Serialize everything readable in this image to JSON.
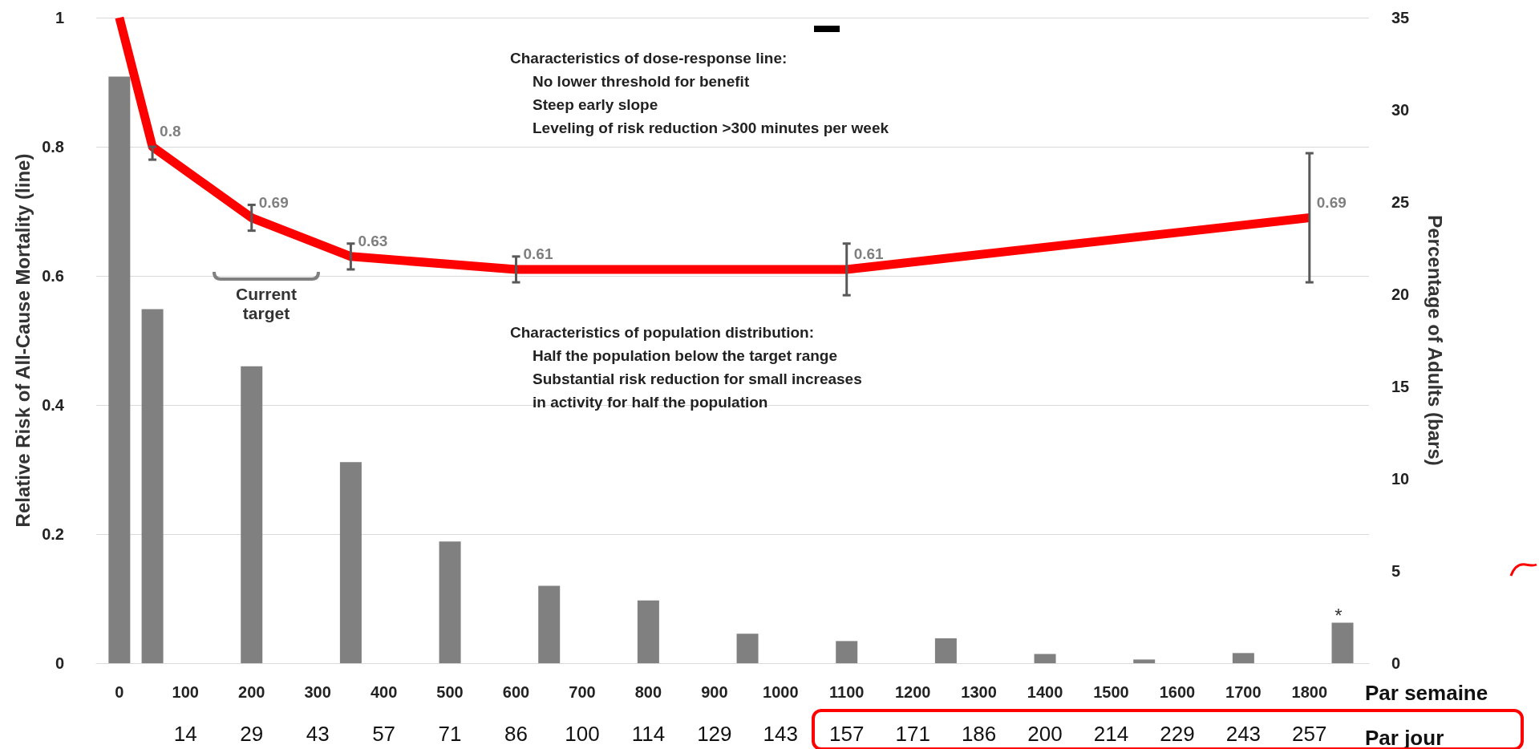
{
  "chart_data": {
    "type": "bar",
    "xlabel": "Par semaine",
    "x2label": "Par jour",
    "ylabel": "Relative Risk of All-Cause Mortality (line)",
    "y2label": "Percentage of Adults (bars)",
    "xlim": [
      -35,
      1890
    ],
    "xticks": [
      0,
      100,
      200,
      300,
      400,
      500,
      600,
      700,
      800,
      900,
      1000,
      1100,
      1200,
      1300,
      1400,
      1500,
      1600,
      1700,
      1800
    ],
    "x2lim": [
      -5,
      270
    ],
    "x2ticks": [
      {
        "value": 14.29,
        "label": "14"
      },
      {
        "value": 28.57,
        "label": "29"
      },
      {
        "value": 42.86,
        "label": "43"
      },
      {
        "value": 57.14,
        "label": "57"
      },
      {
        "value": 71.43,
        "label": "71"
      },
      {
        "value": 85.71,
        "label": "86"
      },
      100,
      {
        "value": 114.29,
        "label": "114"
      },
      {
        "value": 128.57,
        "label": "129"
      },
      {
        "value": 142.86,
        "label": "143"
      },
      {
        "value": 157.14,
        "label": "157"
      },
      {
        "value": 171.43,
        "label": "171"
      },
      {
        "value": 185.71,
        "label": "186"
      },
      200,
      {
        "value": 214.29,
        "label": "214"
      },
      {
        "value": 228.57,
        "label": "229"
      },
      {
        "value": 242.86,
        "label": "243"
      },
      {
        "value": 257.14,
        "label": "257"
      }
    ],
    "ylim": [
      0,
      1
    ],
    "yticks": [
      0,
      0.2,
      0.4,
      0.6,
      0.8,
      1
    ],
    "y2lim": [
      0,
      35
    ],
    "y2ticks": [
      0,
      5,
      10,
      15,
      20,
      25,
      30,
      35
    ],
    "grid": "y",
    "series": [
      {
        "axis": "y2",
        "color": "#808080",
        "x": [
          0,
          50,
          200,
          350,
          500,
          650,
          800,
          950,
          1100,
          1250,
          1400,
          1550,
          1700,
          1850
        ],
        "values": [
          31.8,
          19.2,
          16.1,
          10.9,
          6.6,
          4.2,
          3.4,
          1.6,
          1.2,
          1.35,
          0.5,
          0.2,
          0.55,
          2.2
        ]
      },
      {
        "type": "line",
        "color": "#ff0000",
        "marker": "none",
        "line_style": "solid",
        "x": [
          0,
          50,
          200,
          350,
          600,
          1100,
          1800
        ],
        "values": [
          1,
          0.8,
          0.69,
          0.63,
          0.61,
          0.61,
          0.69
        ],
        "value_labels": [
          null,
          "0.8",
          "0.69",
          "0.63",
          "0.61",
          "0.61",
          "0.69"
        ],
        "errors": [
          null,
          [
            0.78,
            0.8
          ],
          [
            0.67,
            0.71
          ],
          [
            0.61,
            0.65
          ],
          [
            0.59,
            0.63
          ],
          [
            0.57,
            0.65
          ],
          [
            0.59,
            0.79
          ]
        ]
      }
    ],
    "annotations": [
      "Characteristics of dose-response line:\nNo lower threshold for benefit\nSteep early slope\nLeveling of risk reduction >300 minutes per week",
      "Characteristics of population distribution:\nHalf the population below the target range\nSubstantial risk reduction for small increases\nin activity for half the population",
      "Current target",
      "*"
    ]
  }
}
